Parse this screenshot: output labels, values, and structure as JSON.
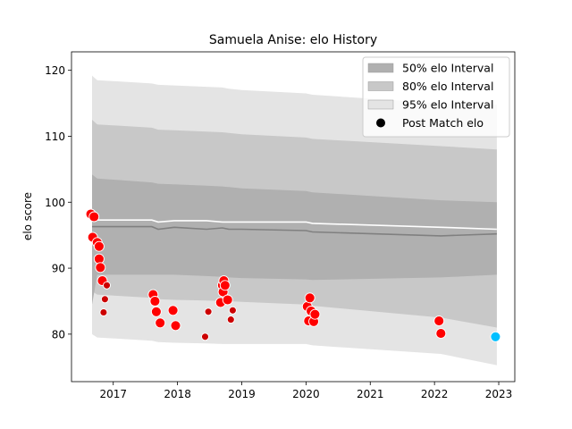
{
  "chart_data": {
    "type": "line",
    "title": "Samuela Anise: elo History",
    "xlabel": "",
    "ylabel": "elo score",
    "xlim": [
      2016.35,
      2023.25
    ],
    "ylim": [
      72.8,
      122.8
    ],
    "x_ticks": [
      2017,
      2018,
      2019,
      2020,
      2021,
      2022,
      2023
    ],
    "x_tick_labels": [
      "2017",
      "2018",
      "2019",
      "2020",
      "2021",
      "2022",
      "2023"
    ],
    "y_ticks": [
      80,
      90,
      100,
      110,
      120
    ],
    "y_tick_labels": [
      "80",
      "90",
      "100",
      "110",
      "120"
    ],
    "grid": false,
    "legend_position": "top-right",
    "legend": [
      {
        "label": "50% elo Interval",
        "kind": "patch",
        "color": "#b0b0b0"
      },
      {
        "label": "80% elo Interval",
        "kind": "patch",
        "color": "#c8c8c8"
      },
      {
        "label": "95% elo Interval",
        "kind": "patch",
        "color": "#e4e4e4"
      },
      {
        "label": "Post Match elo",
        "kind": "marker",
        "color": "#000000"
      }
    ],
    "band_x": [
      2016.67,
      2016.75,
      2017.6,
      2017.7,
      2017.95,
      2018.45,
      2018.7,
      2018.8,
      2019.0,
      2020.0,
      2020.1,
      2022.1,
      2022.97
    ],
    "band_95": {
      "upper": [
        119.2,
        118.5,
        118.0,
        117.8,
        117.7,
        117.5,
        117.4,
        117.2,
        117.0,
        116.5,
        116.3,
        115.0,
        114.8
      ],
      "lower": [
        80.0,
        79.5,
        79.0,
        78.8,
        78.7,
        78.6,
        78.5,
        78.5,
        78.5,
        78.5,
        78.3,
        77.0,
        75.3
      ]
    },
    "band_80": {
      "upper": [
        112.5,
        111.8,
        111.3,
        111.0,
        110.9,
        110.7,
        110.6,
        110.5,
        110.3,
        109.8,
        109.6,
        108.5,
        108.0
      ],
      "lower": [
        86.5,
        86.0,
        85.5,
        85.3,
        85.2,
        85.1,
        85.0,
        85.0,
        84.9,
        84.5,
        84.3,
        82.5,
        81.0
      ]
    },
    "band_50": {
      "upper": [
        104.2,
        103.6,
        103.0,
        102.8,
        102.7,
        102.5,
        102.4,
        102.3,
        102.1,
        101.7,
        101.5,
        100.3,
        100.0
      ],
      "lower": [
        84.5,
        89.0,
        89.0,
        89.0,
        89.0,
        88.8,
        88.7,
        88.6,
        88.5,
        88.3,
        88.2,
        88.6,
        89.0
      ]
    },
    "series": [
      {
        "kind": "line",
        "color": "#ffffff",
        "x": [
          2016.67,
          2016.75,
          2017.6,
          2017.7,
          2017.95,
          2018.45,
          2018.7,
          2018.8,
          2019.0,
          2020.0,
          2020.1,
          2022.1,
          2022.97
        ],
        "y": [
          98.2,
          97.3,
          97.3,
          97.0,
          97.2,
          97.2,
          97.0,
          97.0,
          97.0,
          97.0,
          96.8,
          96.2,
          95.9
        ]
      },
      {
        "kind": "line",
        "color": "#808080",
        "x": [
          2016.67,
          2016.75,
          2017.6,
          2017.7,
          2017.95,
          2018.45,
          2018.7,
          2018.8,
          2019.0,
          2020.0,
          2020.1,
          2022.1,
          2022.97
        ],
        "y": [
          96.3,
          96.3,
          96.3,
          95.9,
          96.2,
          95.9,
          96.1,
          95.9,
          95.9,
          95.7,
          95.5,
          94.9,
          95.2
        ]
      }
    ],
    "points": {
      "x": [
        2016.65,
        2016.68,
        2016.7,
        2016.75,
        2016.78,
        2016.78,
        2016.8,
        2016.83,
        2016.85,
        2016.87,
        2016.9,
        2017.62,
        2017.65,
        2017.67,
        2017.73,
        2017.93,
        2017.97,
        2018.43,
        2018.48,
        2018.67,
        2018.7,
        2018.71,
        2018.72,
        2018.74,
        2018.78,
        2018.83,
        2018.86,
        2020.02,
        2020.04,
        2020.06,
        2020.08,
        2020.12,
        2020.14,
        2022.07,
        2022.1,
        2022.95
      ],
      "y": [
        98.2,
        94.7,
        97.8,
        93.9,
        93.3,
        91.4,
        90.1,
        88.1,
        83.3,
        85.3,
        87.4,
        86.0,
        85.0,
        83.4,
        81.7,
        83.6,
        81.3,
        79.6,
        83.4,
        84.8,
        87.4,
        86.4,
        88.1,
        87.4,
        85.2,
        82.2,
        83.6,
        84.2,
        82.0,
        85.5,
        83.5,
        81.9,
        83.0,
        82.0,
        80.1,
        79.6
      ],
      "colors": [
        "#ff0000",
        "#ff0000",
        "#ff0000",
        "#ff0000",
        "#ff0000",
        "#ff0000",
        "#ff0000",
        "#ff0000",
        "#cc0000",
        "#cc0000",
        "#cc0000",
        "#ff0000",
        "#ff0000",
        "#ff0000",
        "#ff0000",
        "#ff0000",
        "#ff0000",
        "#cc0000",
        "#cc0000",
        "#ff0000",
        "#ff0000",
        "#ff0000",
        "#ff0000",
        "#ff0000",
        "#ff0000",
        "#cc0000",
        "#cc0000",
        "#ff0000",
        "#ff0000",
        "#ff0000",
        "#ff0000",
        "#ff0000",
        "#ff0000",
        "#ff0000",
        "#ff0000",
        "#00bfff"
      ],
      "sizes": [
        "large",
        "large",
        "large",
        "large",
        "large",
        "large",
        "large",
        "large",
        "small",
        "small",
        "small",
        "large",
        "large",
        "large",
        "large",
        "large",
        "large",
        "small",
        "small",
        "large",
        "large",
        "large",
        "large",
        "large",
        "large",
        "small",
        "small",
        "large",
        "large",
        "large",
        "large",
        "large",
        "large",
        "large",
        "large",
        "large"
      ]
    }
  }
}
